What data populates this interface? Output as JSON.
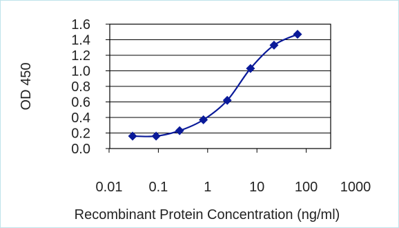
{
  "chart_data": {
    "type": "line",
    "title": "",
    "xlabel": "Recombinant Protein Concentration (ng/ml)",
    "ylabel": "OD 450",
    "x_scale": "log",
    "xlim": [
      0.01,
      1000
    ],
    "ylim": [
      0.0,
      1.6
    ],
    "x_ticks": [
      "0.01",
      "0.1",
      "1",
      "10",
      "100",
      "1000"
    ],
    "y_ticks": [
      "0.0",
      "0.2",
      "0.4",
      "0.6",
      "0.8",
      "1.0",
      "1.2",
      "1.4",
      "1.6"
    ],
    "grid": "horizontal",
    "legend": "none",
    "series": [
      {
        "x": [
          0.03,
          0.09,
          0.27,
          0.82,
          2.5,
          7.4,
          22.2,
          66.7
        ],
        "y": [
          0.16,
          0.16,
          0.23,
          0.37,
          0.62,
          1.03,
          1.33,
          1.47
        ],
        "color": "#0a1a99"
      }
    ]
  }
}
